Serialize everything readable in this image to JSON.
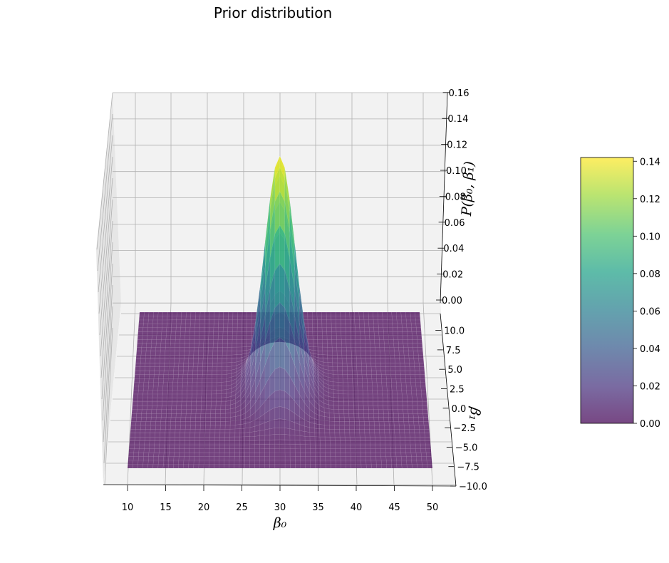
{
  "chart_data": {
    "type": "surface",
    "title": "Prior distribution",
    "xlabel": "β₀",
    "ylabel": "β₁",
    "zlabel": "P(β₀, β₁)",
    "x_ticks": [
      "10",
      "15",
      "20",
      "25",
      "30",
      "35",
      "40",
      "45",
      "50"
    ],
    "y_ticks": [
      "−10.0",
      "−7.5",
      "−5.0",
      "−2.5",
      "0.0",
      "2.5",
      "5.0",
      "7.5",
      "10.0"
    ],
    "z_ticks": [
      "0.00",
      "0.02",
      "0.04",
      "0.06",
      "0.08",
      "0.10",
      "0.12",
      "0.14",
      "0.16"
    ],
    "xlim": [
      10,
      50
    ],
    "ylim": [
      -10,
      10
    ],
    "zlim": [
      0,
      0.16
    ],
    "distribution": {
      "kind": "bivariate_normal",
      "mean": [
        30,
        0
      ],
      "peak_density": 0.142
    },
    "colorbar": {
      "colormap": "viridis",
      "range": [
        0,
        0.142
      ],
      "ticks": [
        "0.00",
        "0.02",
        "0.04",
        "0.06",
        "0.08",
        "0.10",
        "0.12",
        "0.14"
      ]
    }
  }
}
